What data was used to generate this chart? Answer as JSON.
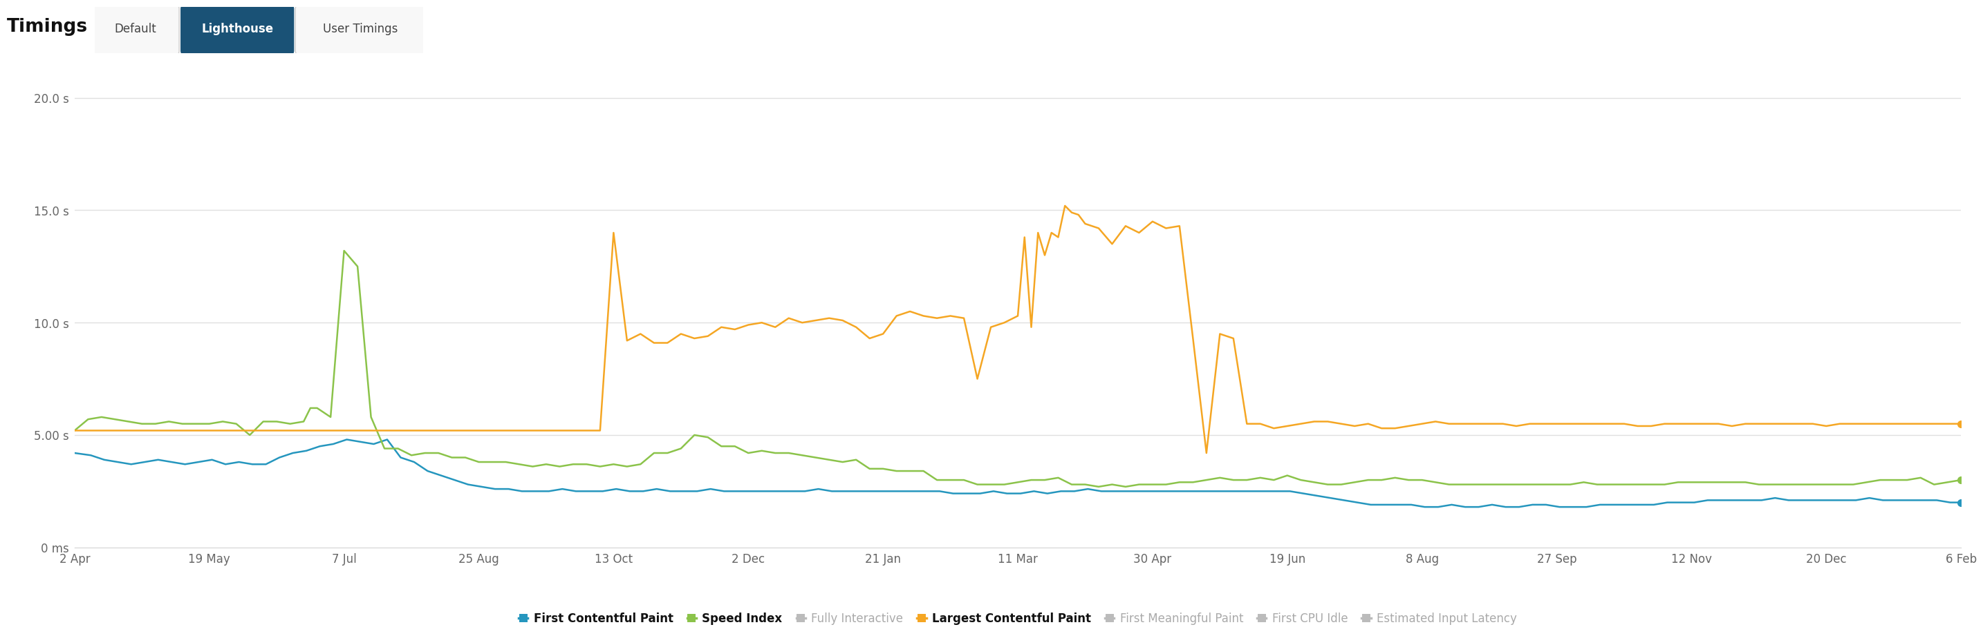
{
  "background_color": "#ffffff",
  "grid_color": "#e0e0e0",
  "ylim": [
    0,
    21
  ],
  "ytick_vals": [
    0,
    5,
    10,
    15,
    20
  ],
  "ytick_labels": [
    "0 ms",
    "5.00 s",
    "10.0 s",
    "15.0 s",
    "20.0 s"
  ],
  "xtick_labels": [
    "2 Apr",
    "19 May",
    "7 Jul",
    "25 Aug",
    "13 Oct",
    "2 Dec",
    "21 Jan",
    "11 Mar",
    "30 Apr",
    "19 Jun",
    "8 Aug",
    "27 Sep",
    "12 Nov",
    "20 Dec",
    "6 Feb"
  ],
  "fcp": {
    "label": "First Contentful Paint",
    "color": "#2596be",
    "linewidth": 1.8,
    "x": [
      0,
      0.12,
      0.22,
      0.32,
      0.42,
      0.52,
      0.62,
      0.72,
      0.82,
      0.92,
      1.02,
      1.12,
      1.22,
      1.32,
      1.42,
      1.52,
      1.62,
      1.72,
      1.82,
      1.92,
      2.02,
      2.12,
      2.22,
      2.32,
      2.42,
      2.52,
      2.62,
      2.72,
      2.82,
      2.92,
      3.02,
      3.12,
      3.22,
      3.32,
      3.42,
      3.52,
      3.62,
      3.72,
      3.82,
      3.92,
      4.02,
      4.12,
      4.22,
      4.32,
      4.42,
      4.52,
      4.62,
      4.72,
      4.82,
      4.92,
      5.02,
      5.12,
      5.22,
      5.32,
      5.42,
      5.52,
      5.62,
      5.72,
      5.82,
      5.92,
      6.02,
      6.12,
      6.22,
      6.32,
      6.42,
      6.52,
      6.62,
      6.72,
      6.82,
      6.92,
      7.02,
      7.12,
      7.22,
      7.32,
      7.42,
      7.52,
      7.62,
      7.72,
      7.82,
      7.92,
      8.02,
      8.12,
      8.22,
      8.32,
      8.42,
      8.52,
      8.62,
      8.72,
      8.82,
      8.92,
      9.02,
      9.12,
      9.22,
      9.32,
      9.42,
      9.52,
      9.62,
      9.72,
      9.82,
      9.92,
      10.02,
      10.12,
      10.22,
      10.32,
      10.42,
      10.52,
      10.62,
      10.72,
      10.82,
      10.92,
      11.02,
      11.12,
      11.22,
      11.32,
      11.42,
      11.52,
      11.62,
      11.72,
      11.82,
      11.92,
      12.02,
      12.12,
      12.22,
      12.32,
      12.42,
      12.52,
      12.62,
      12.72,
      12.82,
      12.92,
      13.02,
      13.12,
      13.22,
      13.32,
      13.42,
      13.52,
      13.62,
      13.72,
      13.82,
      13.92,
      14.0
    ],
    "y": [
      4.2,
      4.1,
      3.9,
      3.8,
      3.7,
      3.8,
      3.9,
      3.8,
      3.7,
      3.8,
      3.9,
      3.7,
      3.8,
      3.7,
      3.7,
      4.0,
      4.2,
      4.3,
      4.5,
      4.6,
      4.8,
      4.7,
      4.6,
      4.8,
      4.0,
      3.8,
      3.4,
      3.2,
      3.0,
      2.8,
      2.7,
      2.6,
      2.6,
      2.5,
      2.5,
      2.5,
      2.6,
      2.5,
      2.5,
      2.5,
      2.6,
      2.5,
      2.5,
      2.6,
      2.5,
      2.5,
      2.5,
      2.6,
      2.5,
      2.5,
      2.5,
      2.5,
      2.5,
      2.5,
      2.5,
      2.6,
      2.5,
      2.5,
      2.5,
      2.5,
      2.5,
      2.5,
      2.5,
      2.5,
      2.5,
      2.4,
      2.4,
      2.4,
      2.5,
      2.4,
      2.4,
      2.5,
      2.4,
      2.5,
      2.5,
      2.6,
      2.5,
      2.5,
      2.5,
      2.5,
      2.5,
      2.5,
      2.5,
      2.5,
      2.5,
      2.5,
      2.5,
      2.5,
      2.5,
      2.5,
      2.5,
      2.4,
      2.3,
      2.2,
      2.1,
      2.0,
      1.9,
      1.9,
      1.9,
      1.9,
      1.8,
      1.8,
      1.9,
      1.8,
      1.8,
      1.9,
      1.8,
      1.8,
      1.9,
      1.9,
      1.8,
      1.8,
      1.8,
      1.9,
      1.9,
      1.9,
      1.9,
      1.9,
      2.0,
      2.0,
      2.0,
      2.1,
      2.1,
      2.1,
      2.1,
      2.1,
      2.2,
      2.1,
      2.1,
      2.1,
      2.1,
      2.1,
      2.1,
      2.2,
      2.1,
      2.1,
      2.1,
      2.1,
      2.1,
      2.0,
      2.0
    ]
  },
  "speed_index": {
    "label": "Speed Index",
    "color": "#8bc34a",
    "linewidth": 1.8,
    "x": [
      0,
      0.1,
      0.2,
      0.3,
      0.4,
      0.5,
      0.6,
      0.7,
      0.8,
      0.9,
      1.0,
      1.1,
      1.2,
      1.3,
      1.4,
      1.5,
      1.6,
      1.7,
      1.75,
      1.8,
      1.9,
      2.0,
      2.1,
      2.2,
      2.3,
      2.4,
      2.5,
      2.6,
      2.7,
      2.8,
      2.9,
      3.0,
      3.1,
      3.2,
      3.3,
      3.4,
      3.5,
      3.6,
      3.7,
      3.8,
      3.9,
      4.0,
      4.1,
      4.2,
      4.3,
      4.4,
      4.5,
      4.6,
      4.7,
      4.8,
      4.9,
      5.0,
      5.1,
      5.2,
      5.3,
      5.4,
      5.5,
      5.6,
      5.7,
      5.8,
      5.9,
      6.0,
      6.1,
      6.2,
      6.3,
      6.4,
      6.5,
      6.6,
      6.7,
      6.8,
      6.9,
      7.0,
      7.1,
      7.2,
      7.3,
      7.4,
      7.5,
      7.6,
      7.7,
      7.8,
      7.9,
      8.0,
      8.1,
      8.2,
      8.3,
      8.4,
      8.5,
      8.6,
      8.7,
      8.8,
      8.9,
      9.0,
      9.1,
      9.2,
      9.3,
      9.4,
      9.5,
      9.6,
      9.7,
      9.8,
      9.9,
      10.0,
      10.1,
      10.2,
      10.3,
      10.4,
      10.5,
      10.6,
      10.7,
      10.8,
      10.9,
      11.0,
      11.1,
      11.2,
      11.3,
      11.4,
      11.5,
      11.6,
      11.7,
      11.8,
      11.9,
      12.0,
      12.1,
      12.2,
      12.3,
      12.4,
      12.5,
      12.6,
      12.7,
      12.8,
      12.9,
      13.0,
      13.1,
      13.2,
      13.3,
      13.4,
      13.5,
      13.6,
      13.7,
      13.8,
      13.9,
      14.0
    ],
    "y": [
      5.2,
      5.7,
      5.8,
      5.7,
      5.6,
      5.5,
      5.5,
      5.6,
      5.5,
      5.5,
      5.5,
      5.6,
      5.5,
      5.0,
      5.6,
      5.6,
      5.5,
      5.6,
      6.2,
      6.2,
      5.8,
      13.2,
      12.5,
      5.8,
      4.4,
      4.4,
      4.1,
      4.2,
      4.2,
      4.0,
      4.0,
      3.8,
      3.8,
      3.8,
      3.7,
      3.6,
      3.7,
      3.6,
      3.7,
      3.7,
      3.6,
      3.7,
      3.6,
      3.7,
      4.2,
      4.2,
      4.4,
      5.0,
      4.9,
      4.5,
      4.5,
      4.2,
      4.3,
      4.2,
      4.2,
      4.1,
      4.0,
      3.9,
      3.8,
      3.9,
      3.5,
      3.5,
      3.4,
      3.4,
      3.4,
      3.0,
      3.0,
      3.0,
      2.8,
      2.8,
      2.8,
      2.9,
      3.0,
      3.0,
      3.1,
      2.8,
      2.8,
      2.7,
      2.8,
      2.7,
      2.8,
      2.8,
      2.8,
      2.9,
      2.9,
      3.0,
      3.1,
      3.0,
      3.0,
      3.1,
      3.0,
      3.2,
      3.0,
      2.9,
      2.8,
      2.8,
      2.9,
      3.0,
      3.0,
      3.1,
      3.0,
      3.0,
      2.9,
      2.8,
      2.8,
      2.8,
      2.8,
      2.8,
      2.8,
      2.8,
      2.8,
      2.8,
      2.8,
      2.9,
      2.8,
      2.8,
      2.8,
      2.8,
      2.8,
      2.8,
      2.9,
      2.9,
      2.9,
      2.9,
      2.9,
      2.9,
      2.8,
      2.8,
      2.8,
      2.8,
      2.8,
      2.8,
      2.8,
      2.8,
      2.9,
      3.0,
      3.0,
      3.0,
      3.1,
      2.8,
      2.9,
      3.0
    ]
  },
  "lcp": {
    "label": "Largest Contentful Paint",
    "color": "#f5a623",
    "linewidth": 1.8,
    "x": [
      0,
      0.1,
      0.2,
      0.3,
      0.4,
      0.5,
      0.6,
      0.7,
      0.8,
      0.9,
      1.0,
      1.1,
      1.2,
      1.3,
      1.4,
      1.5,
      1.6,
      1.7,
      1.8,
      1.9,
      2.0,
      2.1,
      2.2,
      2.3,
      2.4,
      2.5,
      2.6,
      2.7,
      2.8,
      2.9,
      3.0,
      3.1,
      3.2,
      3.3,
      3.4,
      3.5,
      3.6,
      3.7,
      3.8,
      3.9,
      4.0,
      4.1,
      4.2,
      4.3,
      4.4,
      4.5,
      4.6,
      4.7,
      4.8,
      4.9,
      5.0,
      5.1,
      5.2,
      5.3,
      5.4,
      5.5,
      5.6,
      5.7,
      5.8,
      5.9,
      6.0,
      6.1,
      6.2,
      6.3,
      6.4,
      6.5,
      6.6,
      6.7,
      6.8,
      6.9,
      7.0,
      7.05,
      7.1,
      7.15,
      7.2,
      7.25,
      7.3,
      7.35,
      7.4,
      7.45,
      7.5,
      7.6,
      7.7,
      7.8,
      7.9,
      8.0,
      8.1,
      8.2,
      8.3,
      8.4,
      8.5,
      8.6,
      8.7,
      8.8,
      8.9,
      9.0,
      9.1,
      9.2,
      9.3,
      9.4,
      9.5,
      9.6,
      9.7,
      9.8,
      9.9,
      10.0,
      10.1,
      10.2,
      10.3,
      10.4,
      10.5,
      10.6,
      10.7,
      10.8,
      10.9,
      11.0,
      11.1,
      11.2,
      11.3,
      11.4,
      11.5,
      11.6,
      11.7,
      11.8,
      11.9,
      12.0,
      12.1,
      12.2,
      12.3,
      12.4,
      12.5,
      12.6,
      12.7,
      12.8,
      12.9,
      13.0,
      13.1,
      13.2,
      13.3,
      13.4,
      13.5,
      13.6,
      13.7,
      13.8,
      13.9,
      14.0
    ],
    "y": [
      5.2,
      5.2,
      5.2,
      5.2,
      5.2,
      5.2,
      5.2,
      5.2,
      5.2,
      5.2,
      5.2,
      5.2,
      5.2,
      5.2,
      5.2,
      5.2,
      5.2,
      5.2,
      5.2,
      5.2,
      5.2,
      5.2,
      5.2,
      5.2,
      5.2,
      5.2,
      5.2,
      5.2,
      5.2,
      5.2,
      5.2,
      5.2,
      5.2,
      5.2,
      5.2,
      5.2,
      5.2,
      5.2,
      5.2,
      5.2,
      14.0,
      9.2,
      9.5,
      9.1,
      9.1,
      9.5,
      9.3,
      9.4,
      9.8,
      9.7,
      9.9,
      10.0,
      9.8,
      10.2,
      10.0,
      10.1,
      10.2,
      10.1,
      9.8,
      9.3,
      9.5,
      10.3,
      10.5,
      10.3,
      10.2,
      10.3,
      10.2,
      7.5,
      9.8,
      10.0,
      10.3,
      13.8,
      9.8,
      14.0,
      13.0,
      14.0,
      13.8,
      15.2,
      14.9,
      14.8,
      14.4,
      14.2,
      13.5,
      14.3,
      14.0,
      14.5,
      14.2,
      14.3,
      9.3,
      4.2,
      9.5,
      9.3,
      5.5,
      5.5,
      5.3,
      5.4,
      5.5,
      5.6,
      5.6,
      5.5,
      5.4,
      5.5,
      5.3,
      5.3,
      5.4,
      5.5,
      5.6,
      5.5,
      5.5,
      5.5,
      5.5,
      5.5,
      5.4,
      5.5,
      5.5,
      5.5,
      5.5,
      5.5,
      5.5,
      5.5,
      5.5,
      5.4,
      5.4,
      5.5,
      5.5,
      5.5,
      5.5,
      5.5,
      5.4,
      5.5,
      5.5,
      5.5,
      5.5,
      5.5,
      5.5,
      5.4,
      5.5,
      5.5,
      5.5,
      5.5,
      5.5,
      5.5,
      5.5,
      5.5,
      5.5,
      5.5
    ]
  },
  "legend_items": [
    {
      "label": "First Contentful Paint",
      "color": "#2596be",
      "bold": true
    },
    {
      "label": "Speed Index",
      "color": "#8bc34a",
      "bold": true
    },
    {
      "label": "Fully Interactive",
      "color": "#bbbbbb",
      "bold": false
    },
    {
      "label": "Largest Contentful Paint",
      "color": "#f5a623",
      "bold": true
    },
    {
      "label": "First Meaningful Paint",
      "color": "#bbbbbb",
      "bold": false
    },
    {
      "label": "First CPU Idle",
      "color": "#bbbbbb",
      "bold": false
    },
    {
      "label": "Estimated Input Latency",
      "color": "#bbbbbb",
      "bold": false
    }
  ]
}
